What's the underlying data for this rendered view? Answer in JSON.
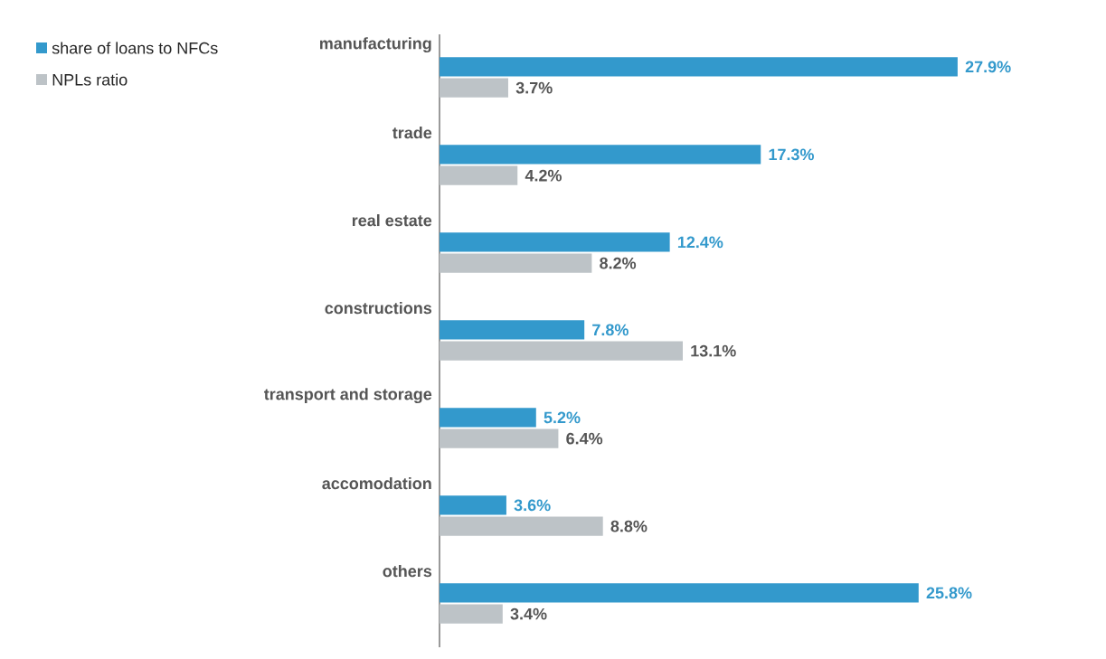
{
  "chart_data": {
    "type": "bar",
    "orientation": "horizontal",
    "categories": [
      "manufacturing",
      "trade",
      "real estate",
      "constructions",
      "transport and storage",
      "accomodation",
      "others"
    ],
    "series": [
      {
        "name": "share of loans to NFCs",
        "color": "#3399cc",
        "values": [
          27.9,
          17.3,
          12.4,
          7.8,
          5.2,
          3.6,
          25.8
        ],
        "value_labels": [
          "27.9%",
          "17.3%",
          "12.4%",
          "7.8%",
          "5.2%",
          "3.6%",
          "25.8%"
        ]
      },
      {
        "name": "NPLs ratio",
        "color": "#bdc3c7",
        "values": [
          3.7,
          4.2,
          8.2,
          13.1,
          6.4,
          8.8,
          3.4
        ],
        "value_labels": [
          "3.7%",
          "4.2%",
          "8.2%",
          "13.1%",
          "6.4%",
          "8.8%",
          "3.4%"
        ]
      }
    ],
    "legend": "top left"
  }
}
